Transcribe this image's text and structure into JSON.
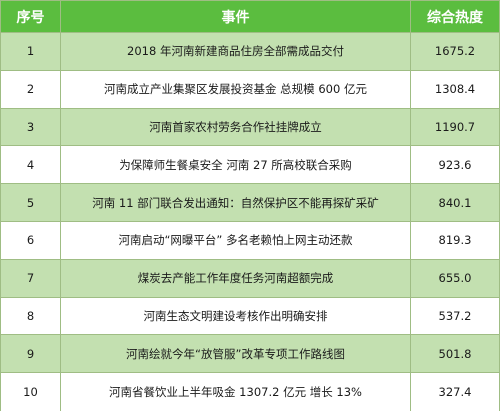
{
  "table": {
    "headers": {
      "index": "序号",
      "event": "事件",
      "heat": "综合热度"
    },
    "rows": [
      {
        "index": "1",
        "event": "2018 年河南新建商品住房全部需成品交付",
        "heat": "1675.2"
      },
      {
        "index": "2",
        "event": "河南成立产业集聚区发展投资基金  总规模 600 亿元",
        "heat": "1308.4"
      },
      {
        "index": "3",
        "event": "河南首家农村劳务合作社挂牌成立",
        "heat": "1190.7"
      },
      {
        "index": "4",
        "event": "为保障师生餐桌安全  河南 27 所高校联合采购",
        "heat": "923.6"
      },
      {
        "index": "5",
        "event": "河南 11 部门联合发出通知：自然保护区不能再探矿采矿",
        "heat": "840.1"
      },
      {
        "index": "6",
        "event": "河南启动“网曝平台”  多名老赖怕上网主动还款",
        "heat": "819.3"
      },
      {
        "index": "7",
        "event": "煤炭去产能工作年度任务河南超额完成",
        "heat": "655.0"
      },
      {
        "index": "8",
        "event": "河南生态文明建设考核作出明确安排",
        "heat": "537.2"
      },
      {
        "index": "9",
        "event": "河南绘就今年“放管服”改革专项工作路线图",
        "heat": "501.8"
      },
      {
        "index": "10",
        "event": "河南省餐饮业上半年吸金 1307.2 亿元  增长 13%",
        "heat": "327.4"
      }
    ]
  },
  "colors": {
    "header_bg": "#5bbd3f",
    "odd_row_bg": "#c3e0b0",
    "even_row_bg": "#ffffff",
    "border": "#9fbd84"
  }
}
